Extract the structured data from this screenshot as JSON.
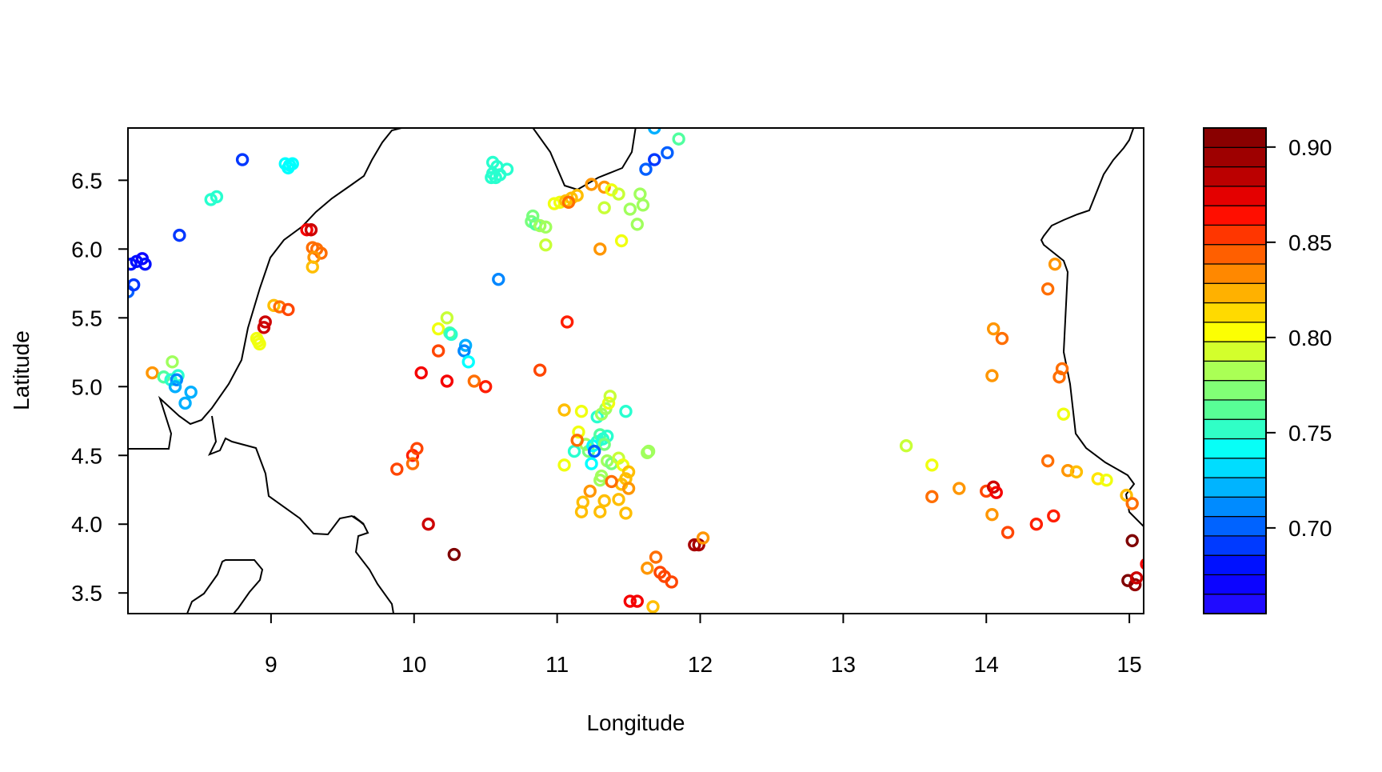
{
  "chart_data": {
    "type": "scatter",
    "title": "",
    "xlabel": "Longitude",
    "ylabel": "Latitude",
    "xlim": [
      8.0,
      15.1
    ],
    "ylim": [
      3.35,
      6.88
    ],
    "xticks": [
      9,
      10,
      11,
      12,
      13,
      14,
      15
    ],
    "xtick_labels": [
      "9",
      "10",
      "11",
      "12",
      "13",
      "14",
      "15"
    ],
    "yticks": [
      3.5,
      4.0,
      4.5,
      5.0,
      5.5,
      6.0,
      6.5
    ],
    "ytick_labels": [
      "3.5",
      "4.0",
      "4.5",
      "5.0",
      "5.5",
      "6.0",
      "6.5"
    ],
    "grid": false,
    "colorbar": {
      "min": 0.655,
      "max": 0.91,
      "ticks": [
        0.7,
        0.75,
        0.8,
        0.85,
        0.9
      ],
      "tick_labels": [
        "0.70",
        "0.75",
        "0.80",
        "0.85",
        "0.90"
      ],
      "palette": [
        "#2A0FFF",
        "#0000FF",
        "#0055FF",
        "#00AAFF",
        "#00FFFF",
        "#55FF99",
        "#AAFF55",
        "#FFFF00",
        "#FFAA00",
        "#FF5500",
        "#FF0000",
        "#AA0000",
        "#7F0000"
      ]
    },
    "points": [
      [
        8.0,
        5.69,
        0.7
      ],
      [
        8.04,
        5.74,
        0.69
      ],
      [
        8.02,
        5.89,
        0.68
      ],
      [
        8.06,
        5.91,
        0.68
      ],
      [
        8.1,
        5.93,
        0.67
      ],
      [
        8.12,
        5.89,
        0.68
      ],
      [
        8.36,
        6.1,
        0.69
      ],
      [
        8.8,
        6.65,
        0.69
      ],
      [
        8.58,
        6.36,
        0.75
      ],
      [
        8.62,
        6.38,
        0.75
      ],
      [
        9.12,
        6.59,
        0.74
      ],
      [
        9.15,
        6.62,
        0.74
      ],
      [
        9.1,
        6.62,
        0.74
      ],
      [
        9.13,
        6.61,
        0.74
      ],
      [
        9.25,
        6.14,
        0.87
      ],
      [
        9.28,
        6.14,
        0.88
      ],
      [
        9.29,
        6.01,
        0.84
      ],
      [
        9.32,
        6.0,
        0.84
      ],
      [
        9.35,
        5.97,
        0.84
      ],
      [
        9.3,
        5.94,
        0.83
      ],
      [
        9.29,
        5.87,
        0.82
      ],
      [
        9.02,
        5.59,
        0.82
      ],
      [
        9.06,
        5.58,
        0.84
      ],
      [
        9.12,
        5.56,
        0.85
      ],
      [
        8.96,
        5.47,
        0.88
      ],
      [
        8.95,
        5.43,
        0.88
      ],
      [
        8.9,
        5.35,
        0.8
      ],
      [
        8.91,
        5.33,
        0.8
      ],
      [
        8.92,
        5.31,
        0.8
      ],
      [
        8.17,
        5.1,
        0.83
      ],
      [
        8.25,
        5.07,
        0.76
      ],
      [
        8.31,
        5.18,
        0.78
      ],
      [
        8.3,
        5.05,
        0.75
      ],
      [
        8.35,
        5.08,
        0.75
      ],
      [
        8.34,
        5.05,
        0.71
      ],
      [
        8.33,
        5.0,
        0.72
      ],
      [
        8.44,
        4.96,
        0.72
      ],
      [
        8.4,
        4.88,
        0.72
      ],
      [
        10.55,
        6.63,
        0.75
      ],
      [
        10.58,
        6.6,
        0.75
      ],
      [
        10.65,
        6.58,
        0.75
      ],
      [
        10.55,
        6.55,
        0.75
      ],
      [
        10.57,
        6.52,
        0.75
      ],
      [
        10.6,
        6.54,
        0.75
      ],
      [
        10.54,
        6.52,
        0.75
      ],
      [
        10.82,
        6.2,
        0.77
      ],
      [
        10.85,
        6.18,
        0.76
      ],
      [
        10.88,
        6.17,
        0.78
      ],
      [
        10.92,
        6.16,
        0.78
      ],
      [
        10.83,
        6.24,
        0.77
      ],
      [
        10.92,
        6.03,
        0.79
      ],
      [
        10.98,
        6.33,
        0.8
      ],
      [
        11.02,
        6.34,
        0.8
      ],
      [
        11.06,
        6.35,
        0.82
      ],
      [
        11.1,
        6.37,
        0.82
      ],
      [
        11.14,
        6.39,
        0.82
      ],
      [
        11.08,
        6.34,
        0.84
      ],
      [
        11.24,
        6.47,
        0.83
      ],
      [
        11.33,
        6.45,
        0.83
      ],
      [
        11.38,
        6.43,
        0.8
      ],
      [
        11.43,
        6.4,
        0.79
      ],
      [
        11.33,
        6.3,
        0.79
      ],
      [
        11.58,
        6.4,
        0.78
      ],
      [
        11.6,
        6.32,
        0.78
      ],
      [
        11.51,
        6.29,
        0.78
      ],
      [
        11.56,
        6.18,
        0.78
      ],
      [
        11.3,
        6.0,
        0.83
      ],
      [
        11.45,
        6.06,
        0.8
      ],
      [
        10.59,
        5.78,
        0.71
      ],
      [
        11.07,
        5.47,
        0.86
      ],
      [
        11.68,
        6.88,
        0.72
      ],
      [
        11.62,
        6.58,
        0.7
      ],
      [
        11.68,
        6.65,
        0.69
      ],
      [
        11.77,
        6.7,
        0.7
      ],
      [
        11.85,
        6.8,
        0.76
      ],
      [
        10.23,
        5.5,
        0.79
      ],
      [
        10.17,
        5.42,
        0.8
      ],
      [
        10.25,
        5.39,
        0.76
      ],
      [
        10.26,
        5.38,
        0.75
      ],
      [
        10.36,
        5.3,
        0.72
      ],
      [
        10.35,
        5.26,
        0.71
      ],
      [
        10.38,
        5.18,
        0.74
      ],
      [
        10.17,
        5.26,
        0.85
      ],
      [
        10.05,
        5.1,
        0.87
      ],
      [
        10.23,
        5.04,
        0.87
      ],
      [
        10.42,
        5.04,
        0.84
      ],
      [
        10.5,
        5.0,
        0.86
      ],
      [
        10.88,
        5.12,
        0.85
      ],
      [
        9.99,
        4.5,
        0.86
      ],
      [
        10.02,
        4.55,
        0.85
      ],
      [
        9.99,
        4.44,
        0.84
      ],
      [
        9.88,
        4.4,
        0.85
      ],
      [
        10.1,
        4.0,
        0.88
      ],
      [
        10.28,
        3.78,
        0.91
      ],
      [
        11.05,
        4.83,
        0.82
      ],
      [
        11.17,
        4.82,
        0.8
      ],
      [
        11.28,
        4.78,
        0.75
      ],
      [
        11.31,
        4.8,
        0.78
      ],
      [
        11.34,
        4.84,
        0.78
      ],
      [
        11.36,
        4.88,
        0.8
      ],
      [
        11.37,
        4.93,
        0.79
      ],
      [
        11.48,
        4.82,
        0.75
      ],
      [
        11.15,
        4.67,
        0.8
      ],
      [
        11.2,
        4.58,
        0.78
      ],
      [
        11.22,
        4.53,
        0.77
      ],
      [
        11.25,
        4.57,
        0.74
      ],
      [
        11.28,
        4.6,
        0.75
      ],
      [
        11.3,
        4.65,
        0.76
      ],
      [
        11.32,
        4.62,
        0.75
      ],
      [
        11.35,
        4.64,
        0.75
      ],
      [
        11.33,
        4.58,
        0.77
      ],
      [
        11.12,
        4.53,
        0.75
      ],
      [
        11.14,
        4.61,
        0.84
      ],
      [
        11.26,
        4.53,
        0.7
      ],
      [
        11.24,
        4.44,
        0.74
      ],
      [
        11.35,
        4.46,
        0.78
      ],
      [
        11.38,
        4.44,
        0.77
      ],
      [
        11.43,
        4.48,
        0.79
      ],
      [
        11.46,
        4.43,
        0.8
      ],
      [
        11.5,
        4.38,
        0.82
      ],
      [
        11.48,
        4.33,
        0.82
      ],
      [
        11.45,
        4.29,
        0.82
      ],
      [
        11.05,
        4.43,
        0.8
      ],
      [
        11.31,
        4.35,
        0.78
      ],
      [
        11.3,
        4.32,
        0.78
      ],
      [
        11.38,
        4.31,
        0.84
      ],
      [
        11.23,
        4.24,
        0.83
      ],
      [
        11.18,
        4.16,
        0.82
      ],
      [
        11.17,
        4.09,
        0.82
      ],
      [
        11.3,
        4.09,
        0.82
      ],
      [
        11.33,
        4.17,
        0.82
      ],
      [
        11.43,
        4.18,
        0.82
      ],
      [
        11.48,
        4.08,
        0.82
      ],
      [
        11.5,
        4.26,
        0.83
      ],
      [
        11.63,
        4.52,
        0.78
      ],
      [
        11.64,
        4.53,
        0.78
      ],
      [
        11.96,
        3.85,
        0.89
      ],
      [
        11.99,
        3.85,
        0.89
      ],
      [
        12.02,
        3.9,
        0.83
      ],
      [
        11.63,
        3.68,
        0.83
      ],
      [
        11.69,
        3.76,
        0.84
      ],
      [
        11.72,
        3.65,
        0.85
      ],
      [
        11.75,
        3.62,
        0.85
      ],
      [
        11.8,
        3.58,
        0.85
      ],
      [
        11.51,
        3.44,
        0.87
      ],
      [
        11.56,
        3.44,
        0.87
      ],
      [
        11.67,
        3.4,
        0.82
      ],
      [
        13.44,
        4.57,
        0.79
      ],
      [
        13.62,
        4.43,
        0.8
      ],
      [
        13.62,
        4.2,
        0.84
      ],
      [
        13.81,
        4.26,
        0.83
      ],
      [
        14.0,
        4.24,
        0.85
      ],
      [
        14.05,
        4.27,
        0.88
      ],
      [
        14.07,
        4.23,
        0.87
      ],
      [
        14.04,
        4.07,
        0.83
      ],
      [
        14.15,
        3.94,
        0.85
      ],
      [
        14.35,
        4.0,
        0.86
      ],
      [
        14.47,
        4.06,
        0.86
      ],
      [
        14.43,
        4.46,
        0.84
      ],
      [
        14.57,
        4.39,
        0.83
      ],
      [
        14.63,
        4.38,
        0.82
      ],
      [
        14.78,
        4.33,
        0.81
      ],
      [
        14.84,
        4.32,
        0.8
      ],
      [
        14.98,
        4.21,
        0.82
      ],
      [
        15.02,
        4.15,
        0.84
      ],
      [
        14.04,
        5.08,
        0.83
      ],
      [
        14.05,
        5.42,
        0.83
      ],
      [
        14.11,
        5.35,
        0.84
      ],
      [
        14.48,
        5.89,
        0.83
      ],
      [
        14.43,
        5.71,
        0.84
      ],
      [
        14.51,
        5.07,
        0.84
      ],
      [
        14.53,
        5.13,
        0.84
      ],
      [
        14.54,
        4.8,
        0.8
      ],
      [
        15.02,
        3.88,
        0.91
      ],
      [
        14.99,
        3.59,
        0.91
      ],
      [
        15.04,
        3.56,
        0.9
      ],
      [
        15.05,
        3.61,
        0.88
      ],
      [
        15.12,
        3.71,
        0.87
      ]
    ]
  }
}
